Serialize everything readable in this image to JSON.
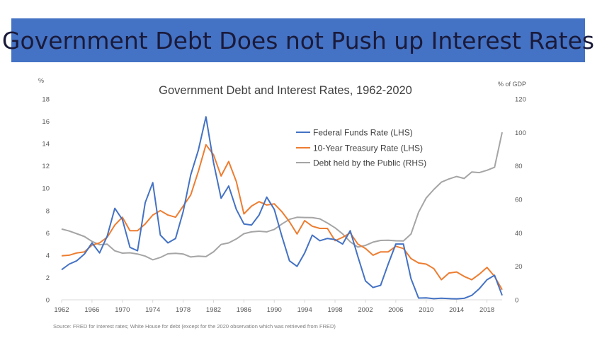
{
  "slide": {
    "title": "Government Debt Does not Push up Interest Rates",
    "source": "Source: FRED for interest rates; White House for debt (except for the 2020 observation which was retrieved from FRED)"
  },
  "colors": {
    "banner": "#4472c4",
    "fed_funds": "#4472c4",
    "treasury": "#ed7d31",
    "debt": "#a5a5a5"
  },
  "chart_data": {
    "type": "line",
    "title": "Government Debt and Interest Rates, 1962-2020",
    "ylabel_left": "%",
    "ylabel_right": "% of GDP",
    "ylim_left": [
      0,
      18
    ],
    "ylim_right": [
      0,
      120
    ],
    "xlim": [
      1962,
      2020
    ],
    "x_ticks": [
      1962,
      1966,
      1970,
      1974,
      1978,
      1982,
      1986,
      1990,
      1994,
      1998,
      2002,
      2006,
      2010,
      2014,
      2018
    ],
    "y_ticks_left": [
      0,
      2,
      4,
      6,
      8,
      10,
      12,
      14,
      16,
      18
    ],
    "y_ticks_right": [
      0,
      20,
      40,
      60,
      80,
      100,
      120
    ],
    "grid": false,
    "legend_position": "upper-right-inside",
    "x": [
      1962,
      1963,
      1964,
      1965,
      1966,
      1967,
      1968,
      1969,
      1970,
      1971,
      1972,
      1973,
      1974,
      1975,
      1976,
      1977,
      1978,
      1979,
      1980,
      1981,
      1982,
      1983,
      1984,
      1985,
      1986,
      1987,
      1988,
      1989,
      1990,
      1991,
      1992,
      1993,
      1994,
      1995,
      1996,
      1997,
      1998,
      1999,
      2000,
      2001,
      2002,
      2003,
      2004,
      2005,
      2006,
      2007,
      2008,
      2009,
      2010,
      2011,
      2012,
      2013,
      2014,
      2015,
      2016,
      2017,
      2018,
      2019,
      2020
    ],
    "series": [
      {
        "name": "Federal Funds Rate (LHS)",
        "axis": "left",
        "color": "#4472c4",
        "values": [
          2.7,
          3.2,
          3.5,
          4.1,
          5.1,
          4.2,
          5.7,
          8.2,
          7.2,
          4.7,
          4.4,
          8.7,
          10.5,
          5.8,
          5.1,
          5.5,
          7.9,
          11.2,
          13.4,
          16.4,
          12.3,
          9.1,
          10.2,
          8.1,
          6.8,
          6.7,
          7.6,
          9.2,
          8.1,
          5.7,
          3.5,
          3.0,
          4.2,
          5.8,
          5.3,
          5.5,
          5.4,
          5.0,
          6.2,
          3.9,
          1.7,
          1.1,
          1.3,
          3.2,
          5.0,
          5.0,
          1.9,
          0.16,
          0.18,
          0.1,
          0.14,
          0.11,
          0.09,
          0.13,
          0.4,
          1.0,
          1.8,
          2.2,
          0.4
        ]
      },
      {
        "name": "10-Year Treasury Rate (LHS)",
        "axis": "left",
        "color": "#ed7d31",
        "values": [
          3.95,
          4.0,
          4.2,
          4.3,
          4.9,
          5.1,
          5.6,
          6.7,
          7.4,
          6.2,
          6.2,
          6.8,
          7.6,
          8.0,
          7.6,
          7.4,
          8.4,
          9.4,
          11.5,
          13.9,
          13.0,
          11.1,
          12.4,
          10.6,
          7.7,
          8.4,
          8.8,
          8.5,
          8.6,
          7.9,
          7.0,
          5.9,
          7.1,
          6.6,
          6.4,
          6.4,
          5.3,
          5.6,
          6.0,
          5.0,
          4.6,
          4.0,
          4.3,
          4.3,
          4.8,
          4.6,
          3.7,
          3.3,
          3.2,
          2.8,
          1.8,
          2.4,
          2.5,
          2.1,
          1.8,
          2.3,
          2.9,
          2.1,
          0.9
        ]
      },
      {
        "name": "Debt held by the Public (RHS)",
        "axis": "right",
        "color": "#a5a5a5",
        "values": [
          42.3,
          41.1,
          39.5,
          37.8,
          34.9,
          32.9,
          33.3,
          29.3,
          27.9,
          28.1,
          27.4,
          26.1,
          23.9,
          25.3,
          27.5,
          27.8,
          27.4,
          25.6,
          26.1,
          25.8,
          28.7,
          33.1,
          34.0,
          36.4,
          39.5,
          40.6,
          41.0,
          40.6,
          42.1,
          45.3,
          48.1,
          49.3,
          49.2,
          49.1,
          48.4,
          45.9,
          43.0,
          39.4,
          34.7,
          31.5,
          32.5,
          34.5,
          35.5,
          35.6,
          35.3,
          35.2,
          39.3,
          52.3,
          60.9,
          65.9,
          70.3,
          72.2,
          73.7,
          72.5,
          76.4,
          76.0,
          77.4,
          79.2,
          100.1
        ]
      }
    ]
  }
}
